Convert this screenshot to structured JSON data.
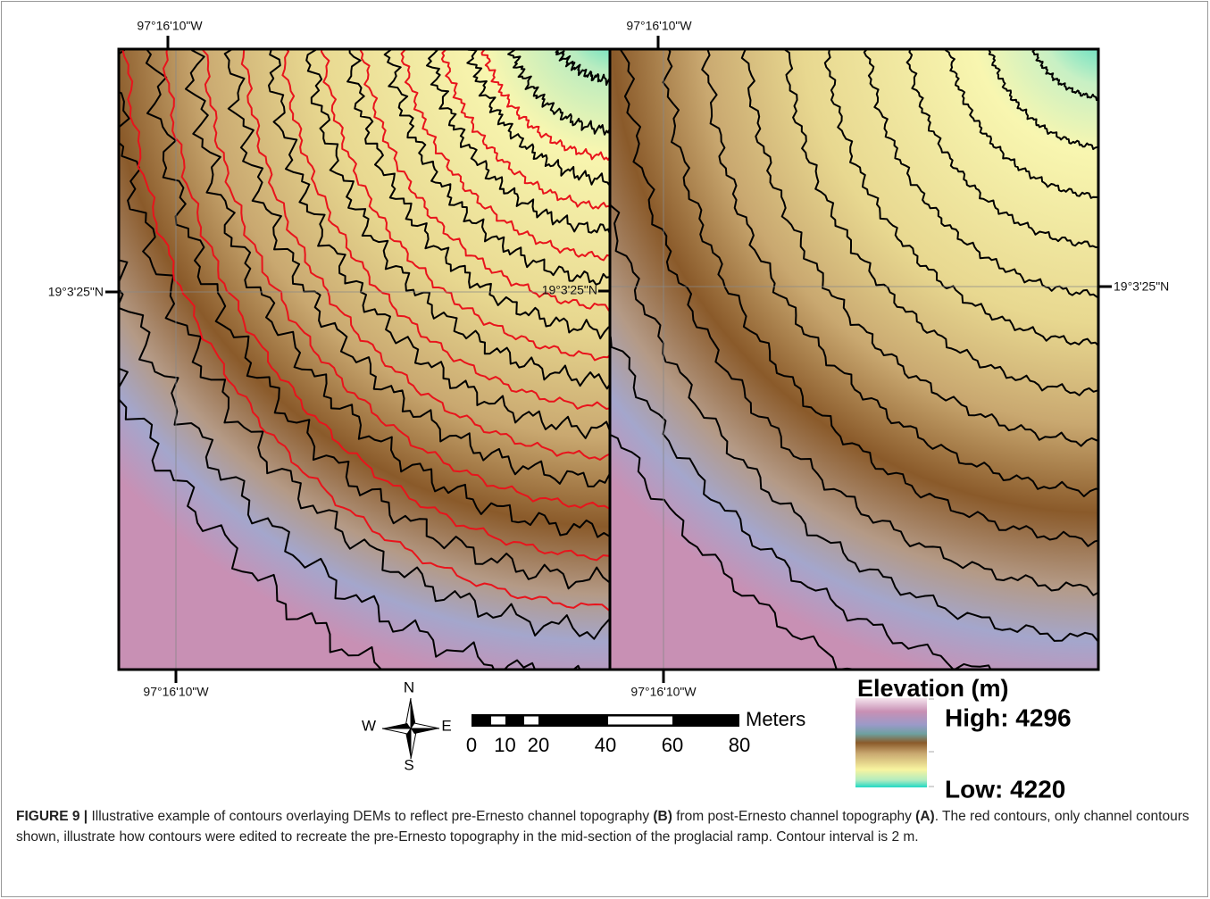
{
  "panels": [
    {
      "top_label": "97°16'10\"W",
      "bottom_label": "97°16'10\"W",
      "side_label": "19°3'25\"N",
      "inner_label": "19°3'25\"N"
    },
    {
      "top_label": "97°16'10\"W",
      "bottom_label": "97°16'10\"W",
      "side_label": "19°3'25\"N"
    }
  ],
  "compass": {
    "n": "N",
    "s": "S",
    "w": "W",
    "e": "E"
  },
  "scale_bar": {
    "unit": "Meters",
    "labels": [
      0,
      10,
      20,
      40,
      60,
      80
    ]
  },
  "legend": {
    "title": "Elevation (m)",
    "high": "High: 4296",
    "low": "Low: 4220"
  },
  "caption": {
    "label": "FIGURE 9 |",
    "text1": " Illustrative example of contours overlaying DEMs to reflect pre-Ernesto channel topography ",
    "b": "(B)",
    "text2": " from post-Ernesto channel topography ",
    "a": "(A)",
    "text3": ". The red contours, only channel contours shown, illustrate how contours were edited to recreate the pre-Ernesto topography in the mid-section of the proglacial ramp. Contour interval is 2 m."
  }
}
